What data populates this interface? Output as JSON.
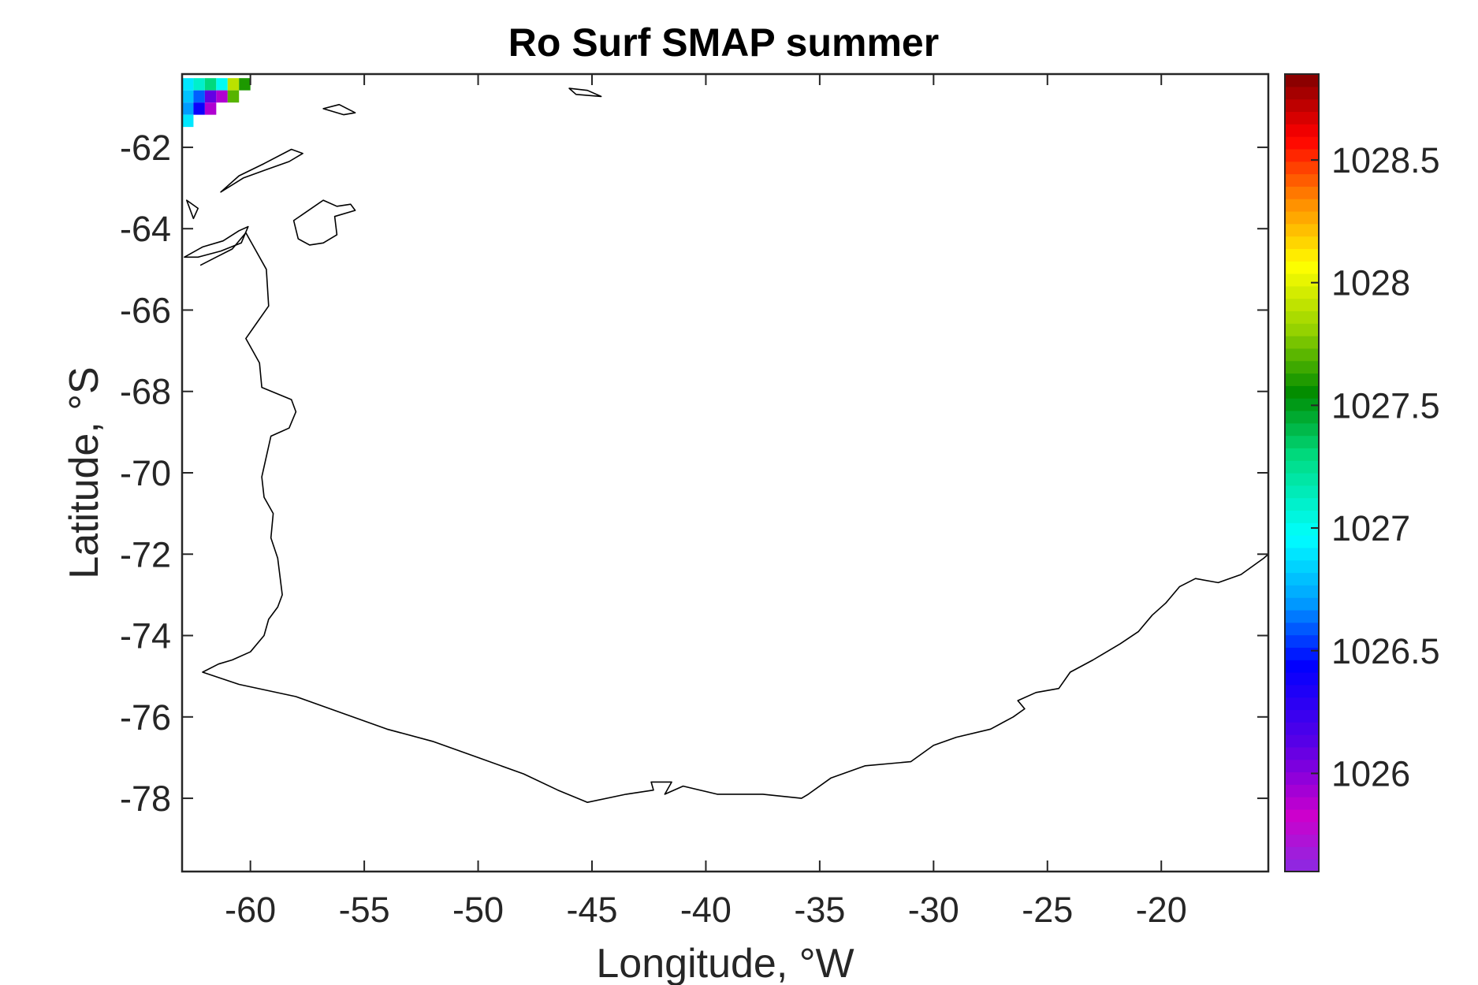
{
  "chart_data": {
    "type": "heatmap",
    "title": "Ro Surf SMAP summer",
    "xlabel": "Longitude, °W",
    "ylabel": "Latitude, °S",
    "xlim": [
      -63,
      -15.3
    ],
    "ylim": [
      -79.8,
      -60.2
    ],
    "xticks": [
      -60,
      -55,
      -50,
      -45,
      -40,
      -35,
      -30,
      -25,
      -20
    ],
    "xtick_labels": [
      "-60",
      "-55",
      "-50",
      "-45",
      "-40",
      "-35",
      "-30",
      "-25",
      "-20"
    ],
    "yticks": [
      -62,
      -64,
      -66,
      -68,
      -70,
      -72,
      -74,
      -76,
      -78
    ],
    "ytick_labels": [
      "-62",
      "-64",
      "-66",
      "-68",
      "-70",
      "-72",
      "-74",
      "-76",
      "-78"
    ],
    "colorbar": {
      "colormap": "jet-like rainbow (purple to dark red)",
      "range": [
        1025.6,
        1028.85
      ],
      "ticks": [
        1026,
        1026.5,
        1027,
        1027.5,
        1028,
        1028.5
      ],
      "tick_labels": [
        "1026",
        "1026.5",
        "1027",
        "1027.5",
        "1028",
        "1028.5"
      ]
    },
    "cells": [
      {
        "lon": -62.75,
        "lat": -60.45,
        "value": 1026.9
      },
      {
        "lon": -62.25,
        "lat": -60.45,
        "value": 1027.1
      },
      {
        "lon": -61.75,
        "lat": -60.45,
        "value": 1027.3
      },
      {
        "lon": -61.25,
        "lat": -60.45,
        "value": 1027.0
      },
      {
        "lon": -60.75,
        "lat": -60.45,
        "value": 1027.9
      },
      {
        "lon": -60.25,
        "lat": -60.45,
        "value": 1027.6
      },
      {
        "lon": -62.75,
        "lat": -60.75,
        "value": 1026.8
      },
      {
        "lon": -62.25,
        "lat": -60.75,
        "value": 1026.6
      },
      {
        "lon": -61.75,
        "lat": -60.75,
        "value": 1026.1
      },
      {
        "lon": -61.25,
        "lat": -60.75,
        "value": 1025.9
      },
      {
        "lon": -60.75,
        "lat": -60.75,
        "value": 1027.7
      },
      {
        "lon": -62.75,
        "lat": -61.05,
        "value": 1026.7
      },
      {
        "lon": -62.25,
        "lat": -61.05,
        "value": 1026.4
      },
      {
        "lon": -61.75,
        "lat": -61.05,
        "value": 1025.9
      },
      {
        "lon": -62.75,
        "lat": -61.35,
        "value": 1026.9
      }
    ],
    "coastline_note": "Antarctic Peninsula and Weddell Sea coastline outline"
  },
  "colors": {
    "axis": "#262626",
    "coastline": "#000000",
    "background": "#ffffff"
  }
}
